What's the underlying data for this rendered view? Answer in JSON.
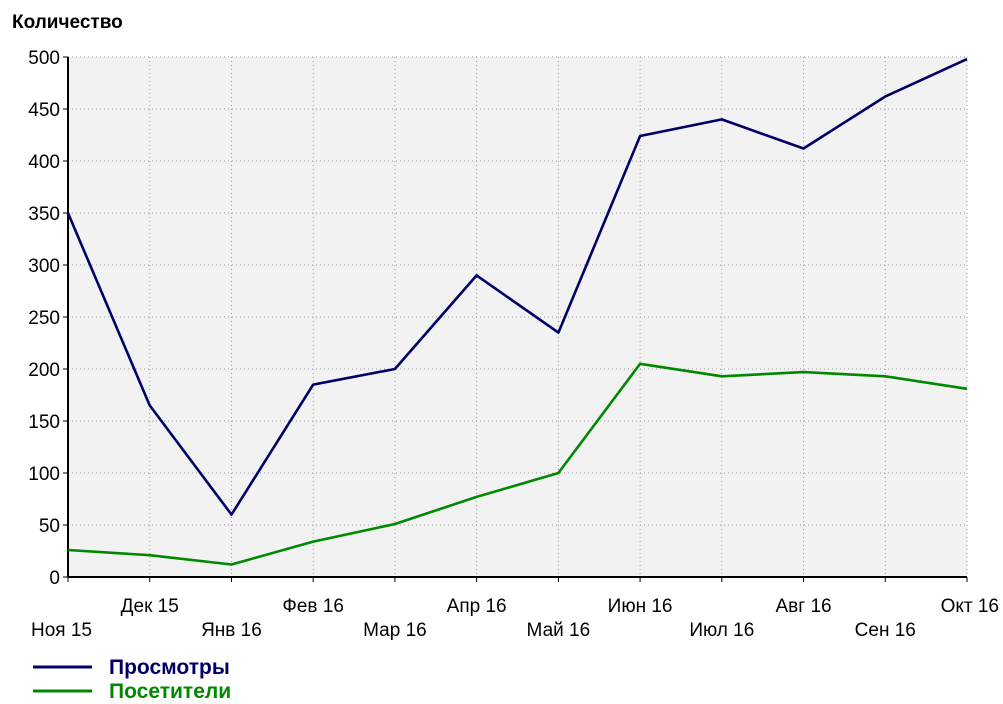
{
  "chart_data": {
    "type": "line",
    "title": "",
    "xlabel": "",
    "ylabel": "Количество",
    "categories": [
      "Ноя 15",
      "Дек 15",
      "Янв 16",
      "Фев 16",
      "Мар 16",
      "Апр 16",
      "Май 16",
      "Июн 16",
      "Июл 16",
      "Авг 16",
      "Сен 16",
      "Окт 16"
    ],
    "series": [
      {
        "name": "Просмотры",
        "color": "#000066",
        "values": [
          350,
          165,
          60,
          185,
          200,
          290,
          235,
          424,
          440,
          412,
          462,
          498
        ]
      },
      {
        "name": "Посетители",
        "color": "#008800",
        "values": [
          26,
          21,
          12,
          34,
          51,
          77,
          100,
          205,
          193,
          197,
          193,
          181
        ]
      }
    ],
    "ylim": [
      0,
      500
    ],
    "yticks": [
      0,
      50,
      100,
      150,
      200,
      250,
      300,
      350,
      400,
      450,
      500
    ],
    "grid": true,
    "legend_position": "bottom-left"
  }
}
